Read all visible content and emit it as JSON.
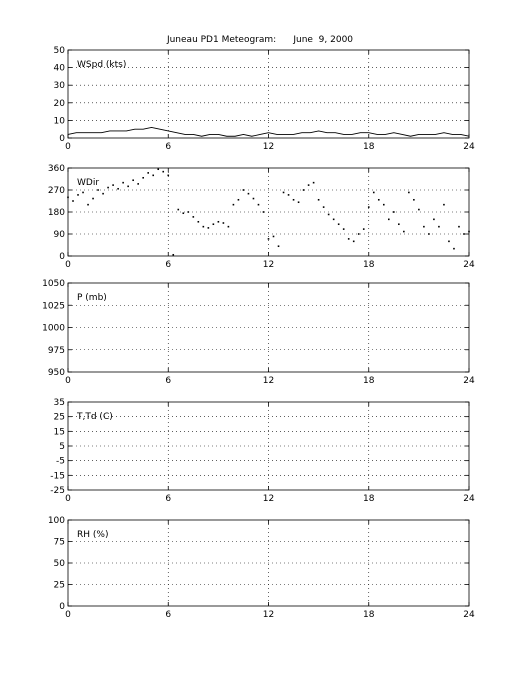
{
  "figure": {
    "title": "Juneau PD1 Meteogram:      June  9, 2000"
  },
  "chart_data": [
    {
      "type": "line",
      "panel_label": "WSpd (kts)",
      "xlim": [
        0,
        24
      ],
      "xticks": [
        0,
        6,
        12,
        18,
        24
      ],
      "ylim": [
        0,
        50
      ],
      "yticks": [
        0,
        10,
        20,
        30,
        40,
        50
      ],
      "grid": true,
      "x": [
        0,
        0.5,
        1,
        1.5,
        2,
        2.5,
        3,
        3.5,
        4,
        4.5,
        5,
        5.5,
        6,
        6.5,
        7,
        7.5,
        8,
        8.5,
        9,
        9.5,
        10,
        10.5,
        11,
        11.5,
        12,
        12.5,
        13,
        13.5,
        14,
        14.5,
        15,
        15.5,
        16,
        16.5,
        17,
        17.5,
        18,
        18.5,
        19,
        19.5,
        20,
        20.5,
        21,
        21.5,
        22,
        22.5,
        23,
        23.5,
        24
      ],
      "series": [
        {
          "values": [
            2,
            3,
            3,
            3,
            3,
            4,
            4,
            4,
            5,
            5,
            6,
            5,
            4,
            3,
            2,
            2,
            1,
            2,
            2,
            1,
            1,
            2,
            1,
            2,
            3,
            2,
            2,
            2,
            3,
            3,
            4,
            3,
            3,
            2,
            2,
            3,
            3,
            2,
            2,
            3,
            2,
            1,
            2,
            2,
            2,
            3,
            2,
            2,
            1
          ]
        }
      ]
    },
    {
      "type": "scatter",
      "panel_label": "WDir",
      "xlim": [
        0,
        24
      ],
      "xticks": [
        0,
        6,
        12,
        18,
        24
      ],
      "ylim": [
        0,
        360
      ],
      "yticks": [
        0,
        90,
        180,
        270,
        360
      ],
      "grid": true,
      "x": [
        0,
        0.3,
        0.6,
        0.9,
        1.2,
        1.5,
        1.8,
        2.1,
        2.4,
        2.7,
        3,
        3.3,
        3.6,
        3.9,
        4.2,
        4.5,
        4.8,
        5.1,
        5.4,
        5.7,
        6,
        6.3,
        6.6,
        6.9,
        7.2,
        7.5,
        7.8,
        8.1,
        8.4,
        8.7,
        9,
        9.3,
        9.6,
        9.9,
        10.2,
        10.5,
        10.8,
        11.1,
        11.4,
        11.7,
        12,
        12.3,
        12.6,
        12.9,
        13.2,
        13.5,
        13.8,
        14.1,
        14.4,
        14.7,
        15,
        15.3,
        15.6,
        15.9,
        16.2,
        16.5,
        16.8,
        17.1,
        17.4,
        17.7,
        18,
        18.3,
        18.6,
        18.9,
        19.2,
        19.5,
        19.8,
        20.1,
        20.4,
        20.7,
        21,
        21.3,
        21.6,
        21.9,
        22.2,
        22.5,
        22.8,
        23.1,
        23.4,
        23.7,
        24
      ],
      "series": [
        {
          "values": [
            240,
            225,
            250,
            260,
            210,
            235,
            270,
            255,
            280,
            290,
            275,
            300,
            285,
            310,
            295,
            320,
            340,
            330,
            355,
            345,
            330,
            5,
            190,
            175,
            180,
            160,
            140,
            120,
            115,
            130,
            140,
            135,
            120,
            210,
            230,
            270,
            255,
            235,
            210,
            180,
            70,
            80,
            40,
            260,
            250,
            230,
            220,
            270,
            290,
            300,
            230,
            200,
            170,
            150,
            130,
            110,
            70,
            60,
            90,
            110,
            200,
            260,
            230,
            210,
            150,
            180,
            130,
            100,
            260,
            230,
            190,
            120,
            90,
            150,
            120,
            210,
            60,
            30,
            120,
            90,
            100
          ]
        }
      ]
    },
    {
      "type": "line",
      "panel_label": "P (mb)",
      "xlim": [
        0,
        24
      ],
      "xticks": [
        0,
        6,
        12,
        18,
        24
      ],
      "ylim": [
        950,
        1050
      ],
      "yticks": [
        950,
        975,
        1000,
        1025,
        1050
      ],
      "grid": true,
      "series": []
    },
    {
      "type": "line",
      "panel_label": "T,Td (C)",
      "xlim": [
        0,
        24
      ],
      "xticks": [
        0,
        6,
        12,
        18,
        24
      ],
      "ylim": [
        -25,
        35
      ],
      "yticks": [
        -25,
        -15,
        -5,
        5,
        15,
        25,
        35
      ],
      "grid": true,
      "series": []
    },
    {
      "type": "line",
      "panel_label": "RH (%)",
      "xlim": [
        0,
        24
      ],
      "xticks": [
        0,
        6,
        12,
        18,
        24
      ],
      "ylim": [
        0,
        100
      ],
      "yticks": [
        0,
        25,
        50,
        75,
        100
      ],
      "grid": true,
      "series": []
    }
  ]
}
